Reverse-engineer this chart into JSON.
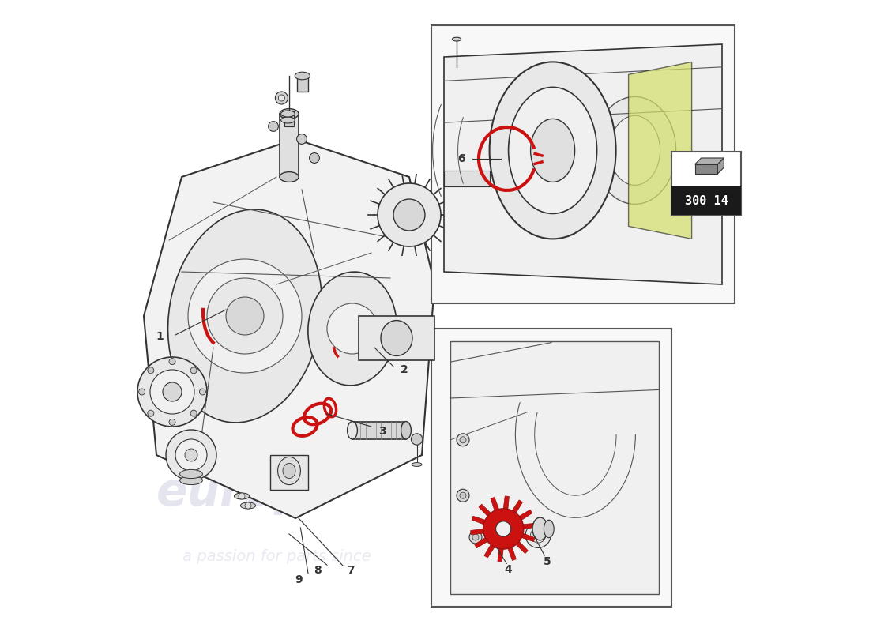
{
  "background_color": "#ffffff",
  "part_number": "300 14",
  "red_color": "#cc1111",
  "line_color": "#555555",
  "dark_line": "#333333",
  "light_line": "#888888"
}
